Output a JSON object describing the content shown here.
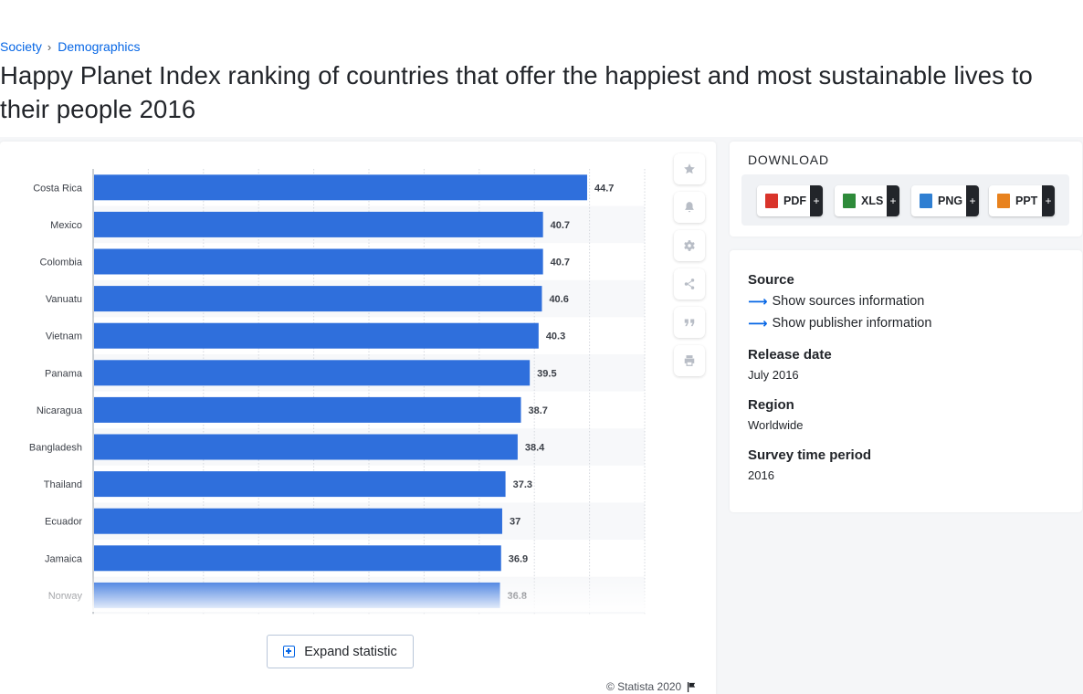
{
  "breadcrumb": {
    "items": [
      "Society",
      "Demographics"
    ],
    "separator": "›"
  },
  "page_title": "Happy Planet Index ranking of countries that offer the happiest and most sustainable lives to their people 2016",
  "chart_data": {
    "type": "bar",
    "orientation": "horizontal",
    "categories": [
      "Costa Rica",
      "Mexico",
      "Colombia",
      "Vanuatu",
      "Vietnam",
      "Panama",
      "Nicaragua",
      "Bangladesh",
      "Thailand",
      "Ecuador",
      "Jamaica",
      "Norway"
    ],
    "values": [
      44.7,
      40.7,
      40.7,
      40.6,
      40.3,
      39.5,
      38.7,
      38.4,
      37.3,
      37,
      36.9,
      36.8
    ],
    "value_labels": [
      "44.7",
      "40.7",
      "40.7",
      "40.6",
      "40.3",
      "39.5",
      "38.7",
      "38.4",
      "37.3",
      "37",
      "36.9",
      "36.8"
    ],
    "xlim": [
      0,
      50
    ],
    "grid": true,
    "bar_color": "#2f6fdc"
  },
  "tools": [
    "star-icon",
    "bell-icon",
    "gear-icon",
    "share-icon",
    "quote-icon",
    "print-icon"
  ],
  "expand_label": "Expand statistic",
  "copyright": "© Statista 2020",
  "download": {
    "title": "DOWNLOAD",
    "buttons": [
      {
        "label": "PDF",
        "plus": "+",
        "color": "#d9342b"
      },
      {
        "label": "XLS",
        "plus": "+",
        "color": "#2e8b3a"
      },
      {
        "label": "PNG",
        "plus": "+",
        "color": "#2f7fd2"
      },
      {
        "label": "PPT",
        "plus": "+",
        "color": "#e8821e"
      }
    ]
  },
  "meta": {
    "source_heading": "Source",
    "show_sources": "Show sources information",
    "show_publisher": "Show publisher information",
    "release_heading": "Release date",
    "release_value": "July 2016",
    "region_heading": "Region",
    "region_value": "Worldwide",
    "survey_heading": "Survey time period",
    "survey_value": "2016"
  }
}
